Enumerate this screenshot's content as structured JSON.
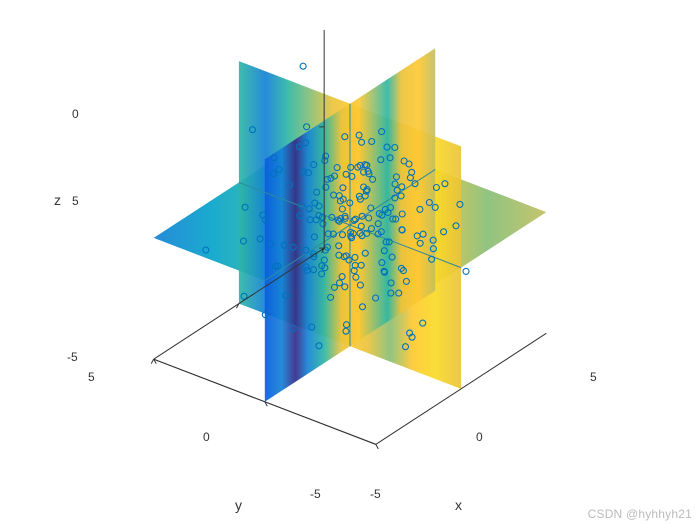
{
  "chart": {
    "type": "slice3d-scatter",
    "background_color": "#ffffff",
    "axis_line_color": "#333333",
    "tick_font_size": 12,
    "label_font_size": 14,
    "x": {
      "label": "x",
      "lim": [
        -5,
        5
      ],
      "ticks": [
        -5,
        0,
        5
      ]
    },
    "y": {
      "label": "y",
      "lim": [
        -5,
        5
      ],
      "ticks": [
        -5,
        0,
        5
      ]
    },
    "z": {
      "label": "z",
      "lim": [
        -5,
        5
      ],
      "ticks": [
        -5,
        0,
        5
      ]
    },
    "colormap": {
      "name": "parula",
      "stops": [
        {
          "t": 0.0,
          "c": "#352a87"
        },
        {
          "t": 0.1,
          "c": "#0b5cdd"
        },
        {
          "t": 0.2,
          "c": "#1481d6"
        },
        {
          "t": 0.3,
          "c": "#06a4ca"
        },
        {
          "t": 0.4,
          "c": "#2eb7a4"
        },
        {
          "t": 0.5,
          "c": "#87bf77"
        },
        {
          "t": 0.6,
          "c": "#c1bf60"
        },
        {
          "t": 0.7,
          "c": "#eac33b"
        },
        {
          "t": 0.8,
          "c": "#fec832"
        },
        {
          "t": 0.9,
          "c": "#f9da25"
        },
        {
          "t": 1.0,
          "c": "#f9fb0e"
        }
      ]
    },
    "slices": {
      "x0": {
        "plane": "x=0",
        "bands": [
          {
            "t": 0.0,
            "c": "#0b5cdd"
          },
          {
            "t": 0.1,
            "c": "#1481d6"
          },
          {
            "t": 0.18,
            "c": "#352a87"
          },
          {
            "t": 0.25,
            "c": "#1481d6"
          },
          {
            "t": 0.35,
            "c": "#2eb7a4"
          },
          {
            "t": 0.45,
            "c": "#eac33b"
          },
          {
            "t": 0.55,
            "c": "#fec832"
          },
          {
            "t": 0.65,
            "c": "#87bf77"
          },
          {
            "t": 0.72,
            "c": "#2eb7a4"
          },
          {
            "t": 0.8,
            "c": "#eac33b"
          },
          {
            "t": 0.9,
            "c": "#fec832"
          },
          {
            "t": 1.0,
            "c": "#c1bf60"
          }
        ]
      },
      "y0": {
        "plane": "y=0",
        "bands": [
          {
            "t": 0.0,
            "c": "#2eb7a4"
          },
          {
            "t": 0.12,
            "c": "#1481d6"
          },
          {
            "t": 0.22,
            "c": "#2eb7a4"
          },
          {
            "t": 0.32,
            "c": "#87bf77"
          },
          {
            "t": 0.42,
            "c": "#eac33b"
          },
          {
            "t": 0.5,
            "c": "#fec832"
          },
          {
            "t": 0.58,
            "c": "#eac33b"
          },
          {
            "t": 0.68,
            "c": "#87bf77"
          },
          {
            "t": 0.78,
            "c": "#fec832"
          },
          {
            "t": 0.88,
            "c": "#f9da25"
          },
          {
            "t": 1.0,
            "c": "#eac33b"
          }
        ]
      },
      "z0": {
        "plane": "z=0",
        "bands": [
          {
            "t": 0.0,
            "c": "#1481d6"
          },
          {
            "t": 0.15,
            "c": "#06a4ca"
          },
          {
            "t": 0.3,
            "c": "#2eb7a4"
          },
          {
            "t": 0.45,
            "c": "#87bf77"
          },
          {
            "t": 0.55,
            "c": "#c1bf60"
          },
          {
            "t": 0.7,
            "c": "#eac33b"
          },
          {
            "t": 0.85,
            "c": "#87bf77"
          },
          {
            "t": 1.0,
            "c": "#c1bf60"
          }
        ]
      }
    },
    "scatter": {
      "marker": "circle-open",
      "marker_size": 6,
      "marker_edge_color": "#0072bd",
      "marker_face_color": "none",
      "n_points": 200,
      "seed": 7,
      "sigma": 1.6,
      "mu": [
        0,
        0,
        0
      ]
    }
  },
  "watermark": "CSDN @hyhhyh21"
}
